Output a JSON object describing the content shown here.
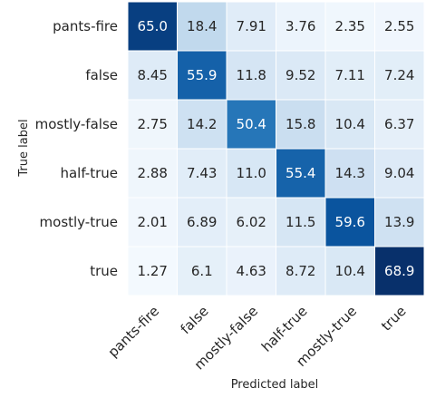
{
  "chart_data": {
    "type": "heatmap",
    "title": "",
    "xlabel": "Predicted label",
    "ylabel": "True label",
    "x_categories": [
      "pants-fire",
      "false",
      "mostly-false",
      "half-true",
      "mostly-true",
      "true"
    ],
    "y_categories": [
      "pants-fire",
      "false",
      "mostly-false",
      "half-true",
      "mostly-true",
      "true"
    ],
    "values": [
      [
        65.0,
        18.4,
        7.91,
        3.76,
        2.35,
        2.55
      ],
      [
        8.45,
        55.9,
        11.8,
        9.52,
        7.11,
        7.24
      ],
      [
        2.75,
        14.2,
        50.4,
        15.8,
        10.4,
        6.37
      ],
      [
        2.88,
        7.43,
        11.0,
        55.4,
        14.3,
        9.04
      ],
      [
        2.01,
        6.89,
        6.02,
        11.5,
        59.6,
        13.9
      ],
      [
        1.27,
        6.1,
        4.63,
        8.72,
        10.4,
        68.9
      ]
    ],
    "value_labels": [
      [
        "65.0",
        "18.4",
        "7.91",
        "3.76",
        "2.35",
        "2.55"
      ],
      [
        "8.45",
        "55.9",
        "11.8",
        "9.52",
        "7.11",
        "7.24"
      ],
      [
        "2.75",
        "14.2",
        "50.4",
        "15.8",
        "10.4",
        "6.37"
      ],
      [
        "2.88",
        "7.43",
        "11.0",
        "55.4",
        "14.3",
        "9.04"
      ],
      [
        "2.01",
        "6.89",
        "6.02",
        "11.5",
        "59.6",
        "13.9"
      ],
      [
        "1.27",
        "6.1",
        "4.63",
        "8.72",
        "10.4",
        "68.9"
      ]
    ],
    "colormap": "Blues",
    "vmin": 0,
    "vmax": 68.9,
    "colorbar": false,
    "grid": false
  }
}
